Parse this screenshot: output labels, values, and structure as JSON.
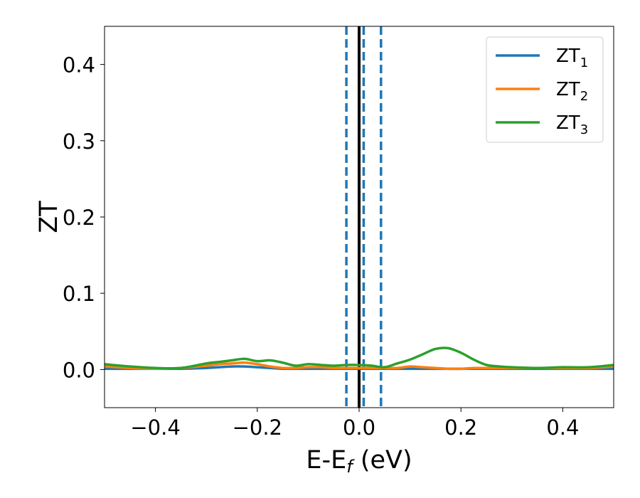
{
  "chart_data": {
    "type": "line",
    "xlabel": {
      "main": "E-E",
      "sub": "f",
      "unit": " (eV)"
    },
    "ylabel": "ZT",
    "xlim": [
      -0.5,
      0.5
    ],
    "ylim": [
      -0.05,
      0.45
    ],
    "xticks": [
      -0.4,
      -0.2,
      0.0,
      0.2,
      0.4
    ],
    "xtick_labels": [
      "−0.4",
      "−0.2",
      "0.0",
      "0.2",
      "0.4"
    ],
    "yticks": [
      0.0,
      0.1,
      0.2,
      0.3,
      0.4
    ],
    "ytick_labels": [
      "0.0",
      "0.1",
      "0.2",
      "0.3",
      "0.4"
    ],
    "grid": false,
    "legend_position": "top-right",
    "vertical_lines": [
      {
        "x": -0.025,
        "style": "dashed",
        "color": "#1f77b4"
      },
      {
        "x": 0.009,
        "style": "dashed",
        "color": "#1f77b4"
      },
      {
        "x": 0.043,
        "style": "dashed",
        "color": "#1f77b4"
      },
      {
        "x": 0.0,
        "style": "solid",
        "color": "#000000"
      }
    ],
    "x": [
      -0.5,
      -0.45,
      -0.4,
      -0.35,
      -0.3,
      -0.275,
      -0.25,
      -0.225,
      -0.2,
      -0.175,
      -0.15,
      -0.125,
      -0.1,
      -0.075,
      -0.05,
      -0.025,
      0.0,
      0.025,
      0.05,
      0.075,
      0.1,
      0.125,
      0.15,
      0.175,
      0.2,
      0.225,
      0.25,
      0.275,
      0.3,
      0.35,
      0.4,
      0.45,
      0.5
    ],
    "series": [
      {
        "name": "ZT",
        "name_sub": "1",
        "color": "#1f77b4",
        "values": [
          0.001,
          0.001,
          0.001,
          0.001,
          0.002,
          0.003,
          0.004,
          0.004,
          0.003,
          0.002,
          0.001,
          0.001,
          0.001,
          0.001,
          0.001,
          0.001,
          0.001,
          0.001,
          0.001,
          0.001,
          0.001,
          0.001,
          0.001,
          0.001,
          0.001,
          0.001,
          0.001,
          0.001,
          0.001,
          0.001,
          0.001,
          0.001,
          0.001
        ]
      },
      {
        "name": "ZT",
        "name_sub": "2",
        "color": "#ff7f0e",
        "values": [
          0.004,
          0.002,
          0.001,
          0.002,
          0.005,
          0.007,
          0.008,
          0.009,
          0.007,
          0.004,
          0.002,
          0.002,
          0.003,
          0.003,
          0.002,
          0.002,
          0.002,
          0.002,
          0.002,
          0.002,
          0.004,
          0.003,
          0.002,
          0.001,
          0.001,
          0.002,
          0.002,
          0.002,
          0.002,
          0.002,
          0.002,
          0.002,
          0.004
        ]
      },
      {
        "name": "ZT",
        "name_sub": "3",
        "color": "#2ca02c",
        "values": [
          0.007,
          0.004,
          0.002,
          0.002,
          0.008,
          0.01,
          0.012,
          0.014,
          0.011,
          0.012,
          0.009,
          0.005,
          0.007,
          0.006,
          0.005,
          0.006,
          0.006,
          0.005,
          0.003,
          0.008,
          0.013,
          0.02,
          0.027,
          0.028,
          0.022,
          0.013,
          0.006,
          0.004,
          0.003,
          0.002,
          0.003,
          0.003,
          0.006
        ]
      }
    ]
  }
}
